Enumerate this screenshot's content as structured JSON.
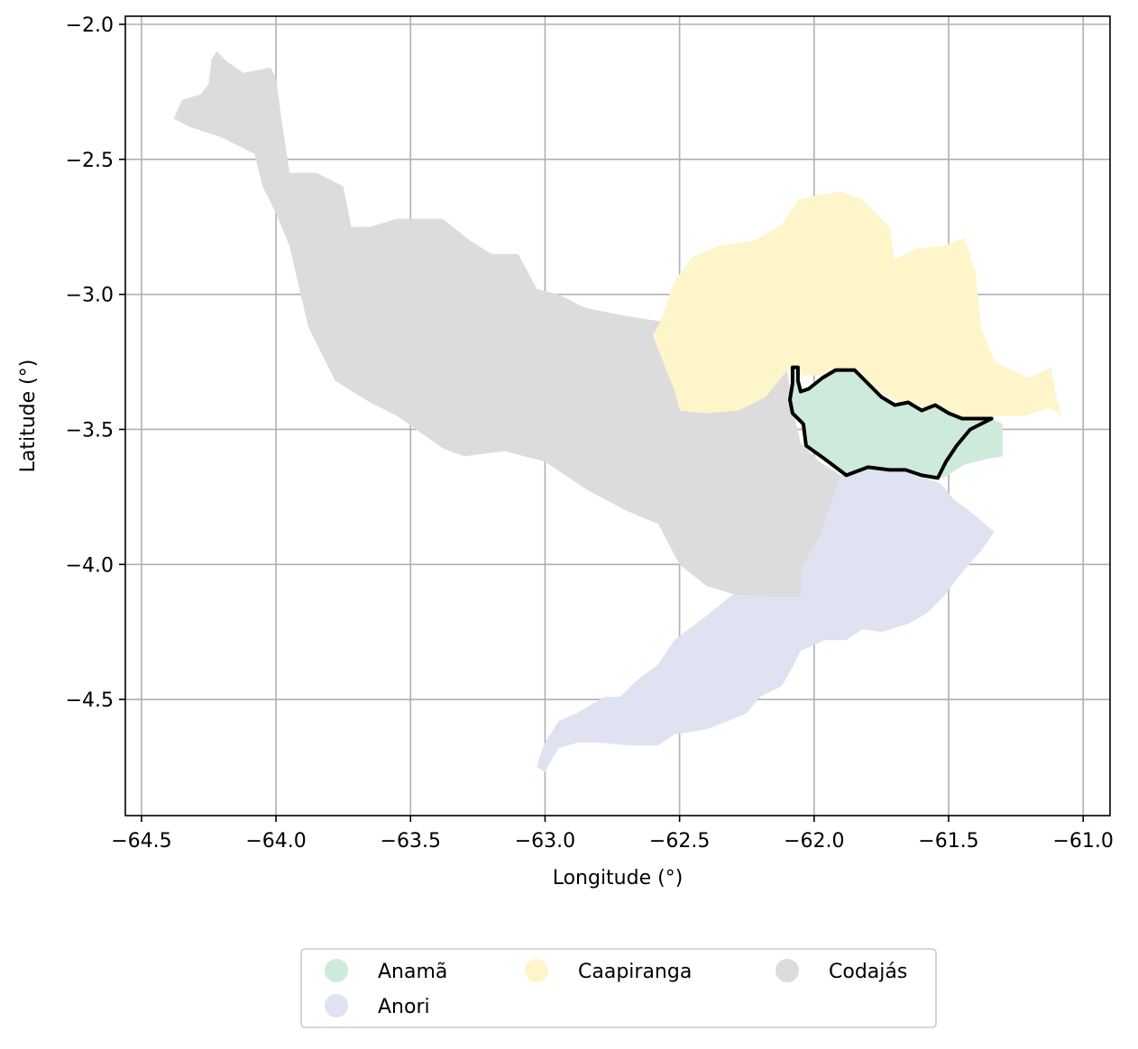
{
  "chart_data": {
    "type": "map",
    "xlabel": "Longitude (°)",
    "ylabel": "Latitude (°)",
    "xlim": [
      -64.56,
      -60.9
    ],
    "ylim": [
      -4.93,
      -1.97
    ],
    "x_ticks": [
      -64.5,
      -64.0,
      -63.5,
      -63.0,
      -62.5,
      -62.0,
      -61.5,
      -61.0
    ],
    "y_ticks": [
      -2.0,
      -2.5,
      -3.0,
      -3.5,
      -4.0,
      -4.5
    ],
    "x_tick_labels": [
      "−64.5",
      "−64.0",
      "−63.5",
      "−63.0",
      "−62.5",
      "−62.0",
      "−61.5",
      "−61.0"
    ],
    "y_tick_labels": [
      "−2.0",
      "−2.5",
      "−3.0",
      "−3.5",
      "−4.0",
      "−4.5"
    ],
    "grid": true,
    "legend_position": "bottom-center",
    "highlighted_region": "Anamã",
    "regions": [
      {
        "name": "Anorí",
        "label": "Anori",
        "color": "#dee2f1",
        "coords": [
          [
            -63.02,
            -4.71
          ],
          [
            -63.0,
            -4.66
          ],
          [
            -62.95,
            -4.58
          ],
          [
            -62.88,
            -4.55
          ],
          [
            -62.78,
            -4.49
          ],
          [
            -62.72,
            -4.49
          ],
          [
            -62.66,
            -4.43
          ],
          [
            -62.58,
            -4.37
          ],
          [
            -62.52,
            -4.28
          ],
          [
            -62.4,
            -4.19
          ],
          [
            -62.3,
            -4.11
          ],
          [
            -62.2,
            -4.06
          ],
          [
            -62.05,
            -4.02
          ],
          [
            -61.98,
            -3.9
          ],
          [
            -61.9,
            -3.67
          ],
          [
            -61.8,
            -3.63
          ],
          [
            -61.65,
            -3.66
          ],
          [
            -61.53,
            -3.7
          ],
          [
            -61.48,
            -3.76
          ],
          [
            -61.4,
            -3.82
          ],
          [
            -61.33,
            -3.88
          ],
          [
            -61.38,
            -3.95
          ],
          [
            -61.45,
            -4.03
          ],
          [
            -61.52,
            -4.12
          ],
          [
            -61.58,
            -4.18
          ],
          [
            -61.65,
            -4.22
          ],
          [
            -61.75,
            -4.25
          ],
          [
            -61.82,
            -4.24
          ],
          [
            -61.88,
            -4.28
          ],
          [
            -61.96,
            -4.28
          ],
          [
            -62.05,
            -4.32
          ],
          [
            -62.08,
            -4.38
          ],
          [
            -62.12,
            -4.45
          ],
          [
            -62.2,
            -4.49
          ],
          [
            -62.25,
            -4.55
          ],
          [
            -62.32,
            -4.58
          ],
          [
            -62.4,
            -4.61
          ],
          [
            -62.52,
            -4.63
          ],
          [
            -62.58,
            -4.67
          ],
          [
            -62.68,
            -4.67
          ],
          [
            -62.8,
            -4.66
          ],
          [
            -62.88,
            -4.66
          ],
          [
            -62.95,
            -4.68
          ],
          [
            -62.98,
            -4.73
          ],
          [
            -63.0,
            -4.77
          ],
          [
            -63.03,
            -4.75
          ]
        ]
      },
      {
        "name": "Caapiranga",
        "label": "Caapiranga",
        "color": "#fef5cb",
        "coords": [
          [
            -62.57,
            -3.1
          ],
          [
            -62.52,
            -2.95
          ],
          [
            -62.45,
            -2.86
          ],
          [
            -62.35,
            -2.82
          ],
          [
            -62.22,
            -2.8
          ],
          [
            -62.12,
            -2.74
          ],
          [
            -62.06,
            -2.65
          ],
          [
            -61.98,
            -2.63
          ],
          [
            -61.9,
            -2.62
          ],
          [
            -61.82,
            -2.65
          ],
          [
            -61.72,
            -2.75
          ],
          [
            -61.7,
            -2.87
          ],
          [
            -61.62,
            -2.83
          ],
          [
            -61.52,
            -2.82
          ],
          [
            -61.44,
            -2.79
          ],
          [
            -61.4,
            -2.92
          ],
          [
            -61.38,
            -3.12
          ],
          [
            -61.33,
            -3.25
          ],
          [
            -61.2,
            -3.31
          ],
          [
            -61.12,
            -3.27
          ],
          [
            -61.1,
            -3.38
          ],
          [
            -61.08,
            -3.45
          ],
          [
            -61.12,
            -3.42
          ],
          [
            -61.22,
            -3.45
          ],
          [
            -61.32,
            -3.45
          ],
          [
            -61.38,
            -3.47
          ],
          [
            -61.45,
            -3.47
          ],
          [
            -61.6,
            -3.45
          ],
          [
            -61.72,
            -3.38
          ],
          [
            -61.85,
            -3.31
          ],
          [
            -61.98,
            -3.3
          ],
          [
            -62.05,
            -3.3
          ],
          [
            -62.1,
            -3.28
          ],
          [
            -62.18,
            -3.38
          ],
          [
            -62.28,
            -3.43
          ],
          [
            -62.4,
            -3.44
          ],
          [
            -62.5,
            -3.43
          ],
          [
            -62.52,
            -3.35
          ],
          [
            -62.55,
            -3.28
          ],
          [
            -62.6,
            -3.15
          ]
        ]
      },
      {
        "name": "Codajás",
        "label": "Codajás",
        "color": "#dcdcdc",
        "coords": [
          [
            -64.38,
            -2.35
          ],
          [
            -64.35,
            -2.28
          ],
          [
            -64.28,
            -2.26
          ],
          [
            -64.25,
            -2.22
          ],
          [
            -64.24,
            -2.13
          ],
          [
            -64.22,
            -2.1
          ],
          [
            -64.18,
            -2.14
          ],
          [
            -64.12,
            -2.18
          ],
          [
            -64.02,
            -2.16
          ],
          [
            -64.0,
            -2.2
          ],
          [
            -63.98,
            -2.35
          ],
          [
            -63.96,
            -2.48
          ],
          [
            -63.95,
            -2.55
          ],
          [
            -63.85,
            -2.55
          ],
          [
            -63.75,
            -2.6
          ],
          [
            -63.72,
            -2.75
          ],
          [
            -63.65,
            -2.75
          ],
          [
            -63.55,
            -2.72
          ],
          [
            -63.45,
            -2.72
          ],
          [
            -63.38,
            -2.72
          ],
          [
            -63.28,
            -2.8
          ],
          [
            -63.2,
            -2.85
          ],
          [
            -63.1,
            -2.85
          ],
          [
            -63.03,
            -2.98
          ],
          [
            -62.95,
            -3.0
          ],
          [
            -62.85,
            -3.05
          ],
          [
            -62.7,
            -3.08
          ],
          [
            -62.57,
            -3.1
          ],
          [
            -62.6,
            -3.15
          ],
          [
            -62.55,
            -3.28
          ],
          [
            -62.52,
            -3.35
          ],
          [
            -62.5,
            -3.43
          ],
          [
            -62.4,
            -3.44
          ],
          [
            -62.28,
            -3.43
          ],
          [
            -62.18,
            -3.38
          ],
          [
            -62.1,
            -3.28
          ],
          [
            -62.08,
            -3.42
          ],
          [
            -62.05,
            -3.55
          ],
          [
            -61.98,
            -3.62
          ],
          [
            -61.9,
            -3.67
          ],
          [
            -61.98,
            -3.9
          ],
          [
            -62.05,
            -4.02
          ],
          [
            -62.05,
            -4.12
          ],
          [
            -62.15,
            -4.12
          ],
          [
            -62.3,
            -4.11
          ],
          [
            -62.4,
            -4.08
          ],
          [
            -62.5,
            -4.0
          ],
          [
            -62.58,
            -3.85
          ],
          [
            -62.7,
            -3.8
          ],
          [
            -62.85,
            -3.72
          ],
          [
            -63.0,
            -3.62
          ],
          [
            -63.15,
            -3.58
          ],
          [
            -63.3,
            -3.6
          ],
          [
            -63.38,
            -3.57
          ],
          [
            -63.55,
            -3.45
          ],
          [
            -63.65,
            -3.4
          ],
          [
            -63.7,
            -3.37
          ],
          [
            -63.78,
            -3.32
          ],
          [
            -63.83,
            -3.22
          ],
          [
            -63.88,
            -3.12
          ],
          [
            -63.92,
            -2.95
          ],
          [
            -63.95,
            -2.82
          ],
          [
            -64.0,
            -2.7
          ],
          [
            -64.05,
            -2.6
          ],
          [
            -64.08,
            -2.48
          ],
          [
            -64.2,
            -2.42
          ],
          [
            -64.32,
            -2.38
          ]
        ]
      },
      {
        "name": "Anamã",
        "label": "Anamã",
        "color": "#ceeadb",
        "coords": [
          [
            -62.08,
            -3.27
          ],
          [
            -62.06,
            -3.27
          ],
          [
            -62.06,
            -3.32
          ],
          [
            -62.05,
            -3.36
          ],
          [
            -62.02,
            -3.35
          ],
          [
            -61.97,
            -3.31
          ],
          [
            -61.92,
            -3.28
          ],
          [
            -61.85,
            -3.28
          ],
          [
            -61.8,
            -3.33
          ],
          [
            -61.75,
            -3.38
          ],
          [
            -61.7,
            -3.41
          ],
          [
            -61.65,
            -3.4
          ],
          [
            -61.6,
            -3.43
          ],
          [
            -61.55,
            -3.41
          ],
          [
            -61.5,
            -3.44
          ],
          [
            -61.45,
            -3.46
          ],
          [
            -61.34,
            -3.46
          ],
          [
            -61.3,
            -3.48
          ],
          [
            -61.3,
            -3.6
          ],
          [
            -61.36,
            -3.61
          ],
          [
            -61.44,
            -3.63
          ],
          [
            -61.52,
            -3.68
          ],
          [
            -61.56,
            -3.67
          ],
          [
            -61.6,
            -3.67
          ],
          [
            -61.66,
            -3.65
          ],
          [
            -61.72,
            -3.65
          ],
          [
            -61.8,
            -3.64
          ],
          [
            -61.88,
            -3.67
          ],
          [
            -61.96,
            -3.61
          ],
          [
            -62.03,
            -3.56
          ],
          [
            -62.04,
            -3.48
          ],
          [
            -62.08,
            -3.44
          ],
          [
            -62.09,
            -3.39
          ],
          [
            -62.08,
            -3.33
          ]
        ]
      }
    ],
    "highlight_outline": [
      [
        -62.08,
        -3.27
      ],
      [
        -62.06,
        -3.27
      ],
      [
        -62.06,
        -3.32
      ],
      [
        -62.05,
        -3.36
      ],
      [
        -62.02,
        -3.35
      ],
      [
        -61.97,
        -3.31
      ],
      [
        -61.92,
        -3.28
      ],
      [
        -61.85,
        -3.28
      ],
      [
        -61.8,
        -3.33
      ],
      [
        -61.75,
        -3.38
      ],
      [
        -61.7,
        -3.41
      ],
      [
        -61.65,
        -3.4
      ],
      [
        -61.6,
        -3.43
      ],
      [
        -61.55,
        -3.41
      ],
      [
        -61.5,
        -3.44
      ],
      [
        -61.45,
        -3.46
      ],
      [
        -61.34,
        -3.46
      ],
      [
        -61.42,
        -3.5
      ],
      [
        -61.47,
        -3.56
      ],
      [
        -61.51,
        -3.62
      ],
      [
        -61.54,
        -3.68
      ],
      [
        -61.6,
        -3.67
      ],
      [
        -61.66,
        -3.65
      ],
      [
        -61.72,
        -3.65
      ],
      [
        -61.8,
        -3.64
      ],
      [
        -61.88,
        -3.67
      ],
      [
        -61.96,
        -3.61
      ],
      [
        -62.03,
        -3.56
      ],
      [
        -62.04,
        -3.48
      ],
      [
        -62.08,
        -3.44
      ],
      [
        -62.09,
        -3.39
      ],
      [
        -62.08,
        -3.33
      ]
    ],
    "legend": [
      {
        "label": "Anamã",
        "color": "#ceeadb"
      },
      {
        "label": "Caapiranga",
        "color": "#fef5cb"
      },
      {
        "label": "Codajás",
        "color": "#dcdcdc"
      },
      {
        "label": "Anori",
        "color": "#dee2f1"
      }
    ]
  }
}
